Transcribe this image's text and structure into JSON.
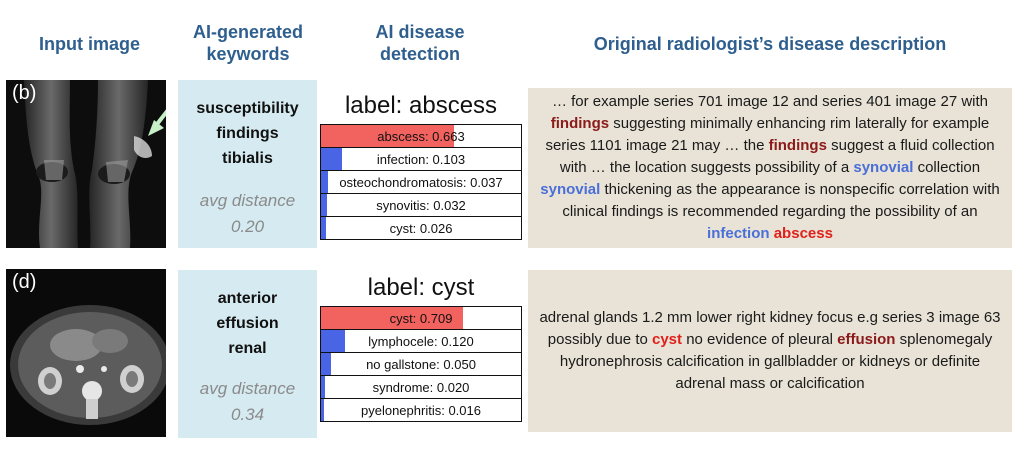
{
  "headers": {
    "input_image": "Input image",
    "keywords_line1": "AI-generated",
    "keywords_line2": "keywords",
    "detection_line1": "AI disease",
    "detection_line2": "detection",
    "description": "Original radiologist’s disease description"
  },
  "rows": [
    {
      "tag": "(b)",
      "keywords": [
        "susceptibility",
        "findings",
        "tibialis"
      ],
      "distance_line1": "avg distance",
      "distance_line2": "0.20",
      "detection": {
        "label": "label: abscess",
        "predictions": [
          {
            "text": "abscess: 0.663",
            "score": 0.663,
            "color": "#f2625e"
          },
          {
            "text": "infection: 0.103",
            "score": 0.103,
            "color": "#4a64e6"
          },
          {
            "text": "osteochondromatosis: 0.037",
            "score": 0.037,
            "color": "#4a64e6"
          },
          {
            "text": "synovitis: 0.032",
            "score": 0.032,
            "color": "#4a64e6"
          },
          {
            "text": "cyst: 0.026",
            "score": 0.026,
            "color": "#4a64e6"
          }
        ]
      },
      "description": [
        {
          "text": "… for example series 701 image 12 and series 401 image 27 with "
        },
        {
          "text": "findings",
          "style": "dark"
        },
        {
          "text": " suggesting minimally enhancing rim laterally  for example series 1101 image 21 may … the "
        },
        {
          "text": "findings",
          "style": "dark"
        },
        {
          "text": " suggest a fluid collection with …  the location suggests possibility of a "
        },
        {
          "text": "synovial",
          "style": "blue"
        },
        {
          "text": " collection "
        },
        {
          "text": "synovial",
          "style": "blue"
        },
        {
          "text": " thickening  as the appearance is nonspecific  correlation with clinical findings is recommended regarding the possibility of an "
        },
        {
          "text": "infection",
          "style": "blue"
        },
        {
          "text": " "
        },
        {
          "text": "abscess",
          "style": "red"
        }
      ]
    },
    {
      "tag": "(d)",
      "keywords": [
        "anterior",
        "effusion",
        "renal"
      ],
      "distance_line1": "avg distance",
      "distance_line2": "0.34",
      "detection": {
        "label": "label: cyst",
        "predictions": [
          {
            "text": "cyst: 0.709",
            "score": 0.709,
            "color": "#f2625e"
          },
          {
            "text": "lymphocele: 0.120",
            "score": 0.12,
            "color": "#4a64e6"
          },
          {
            "text": "no gallstone: 0.050",
            "score": 0.05,
            "color": "#4a64e6"
          },
          {
            "text": "syndrome: 0.020",
            "score": 0.02,
            "color": "#4a64e6"
          },
          {
            "text": "pyelonephritis: 0.016",
            "score": 0.016,
            "color": "#4a64e6"
          }
        ]
      },
      "description": [
        {
          "text": "adrenal glands  1.2 mm lower right kidney focus  e.g series 3 image 63  possibly due to "
        },
        {
          "text": "cyst",
          "style": "red"
        },
        {
          "text": " no evidence of pleural "
        },
        {
          "text": "effusion",
          "style": "dark"
        },
        {
          "text": " splenomegaly hydronephrosis calcification in gallbladder or kidneys  or definite adrenal mass or calcification"
        }
      ]
    }
  ]
}
